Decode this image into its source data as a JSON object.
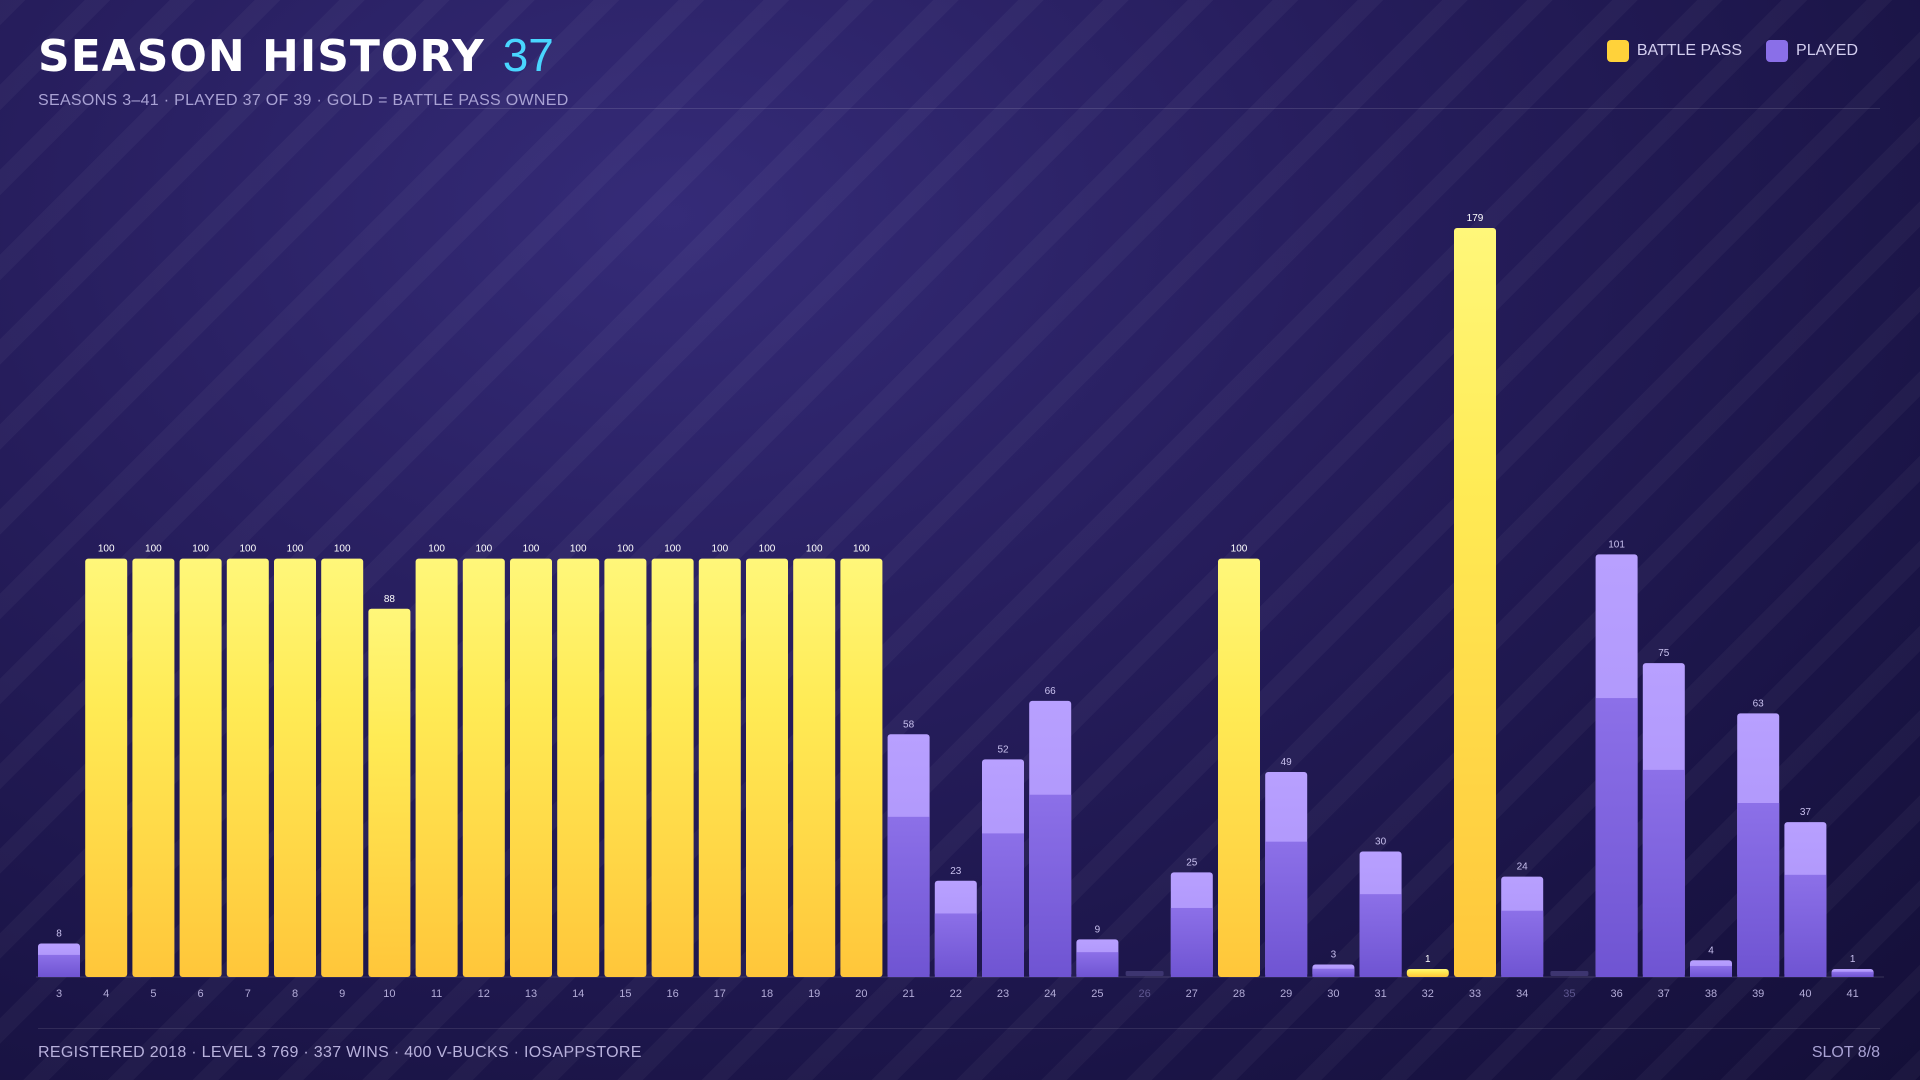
{
  "header": {
    "title": "SEASON HISTORY",
    "count": "37",
    "subtitle": "SEASONS 3–41  ·  PLAYED 37 OF 39  ·  GOLD = BATTLE PASS OWNED"
  },
  "legend": {
    "battle_pass": "BATTLE PASS",
    "played": "PLAYED"
  },
  "footer": {
    "left": "REGISTERED 2018  ·  LEVEL 3 769  ·  337 WINS  ·  400 V-BUCKS  ·  IOSAPPSTORE",
    "right": "SLOT 8/8"
  },
  "colors": {
    "battle_pass": "#ffd23a",
    "played": "#8a6fe8",
    "accent": "#49d6ff"
  },
  "chart_data": {
    "type": "bar",
    "title": "SEASON HISTORY",
    "categories": [
      "3",
      "4",
      "5",
      "6",
      "7",
      "8",
      "9",
      "10",
      "11",
      "12",
      "13",
      "14",
      "15",
      "16",
      "17",
      "18",
      "19",
      "20",
      "21",
      "22",
      "23",
      "24",
      "25",
      "26",
      "27",
      "28",
      "29",
      "30",
      "31",
      "32",
      "33",
      "34",
      "35",
      "36",
      "37",
      "38",
      "39",
      "40",
      "41"
    ],
    "values": [
      8,
      100,
      100,
      100,
      100,
      100,
      100,
      88,
      100,
      100,
      100,
      100,
      100,
      100,
      100,
      100,
      100,
      100,
      58,
      23,
      52,
      66,
      9,
      0,
      25,
      100,
      49,
      3,
      30,
      1,
      179,
      24,
      0,
      101,
      75,
      4,
      63,
      37,
      1
    ],
    "battle_pass": [
      false,
      true,
      true,
      true,
      true,
      true,
      true,
      true,
      true,
      true,
      true,
      true,
      true,
      true,
      true,
      true,
      true,
      true,
      false,
      false,
      false,
      false,
      false,
      false,
      false,
      true,
      false,
      false,
      false,
      true,
      true,
      false,
      false,
      false,
      false,
      false,
      false,
      false,
      false
    ],
    "played": [
      true,
      true,
      true,
      true,
      true,
      true,
      true,
      true,
      true,
      true,
      true,
      true,
      true,
      true,
      true,
      true,
      true,
      true,
      true,
      true,
      true,
      true,
      true,
      false,
      true,
      true,
      true,
      true,
      true,
      true,
      true,
      true,
      false,
      true,
      true,
      true,
      true,
      true,
      true
    ],
    "ylim": [
      0,
      190
    ],
    "grid": false,
    "legend": "top-right",
    "series": [
      {
        "name": "BATTLE PASS"
      },
      {
        "name": "PLAYED"
      }
    ]
  }
}
